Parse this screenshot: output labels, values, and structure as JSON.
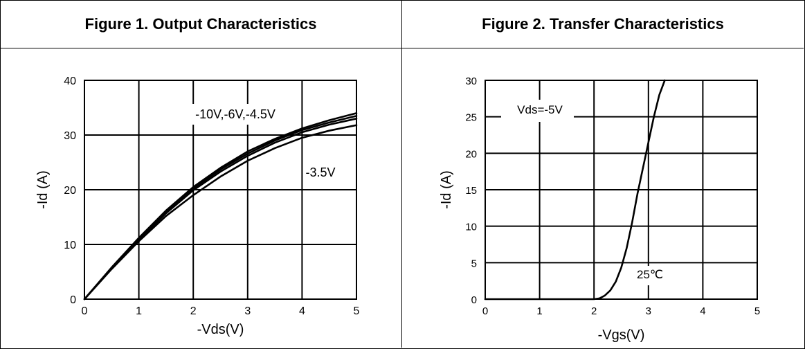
{
  "chart_data": [
    {
      "type": "line",
      "title": "Figure 1. Output Characteristics",
      "xlabel": "-Vds(V)",
      "ylabel": "-Id (A)",
      "xlim": [
        0,
        5
      ],
      "ylim": [
        0,
        40
      ],
      "xticks": [
        "0",
        "1",
        "2",
        "3",
        "4",
        "5"
      ],
      "yticks": [
        "0",
        "10",
        "20",
        "30",
        "40"
      ],
      "grid": true,
      "annotations": [
        "-10V,-6V,-4.5V",
        "-3.5V"
      ],
      "series": [
        {
          "x": [
            0,
            0.5,
            1,
            1.5,
            2,
            2.5,
            3,
            3.5,
            4,
            4.5,
            5
          ],
          "y": [
            0,
            5.8,
            11.2,
            16.2,
            20.5,
            24.0,
            27.0,
            29.3,
            31.2,
            32.7,
            34.0
          ]
        },
        {
          "x": [
            0,
            0.5,
            1,
            1.5,
            2,
            2.5,
            3,
            3.5,
            4,
            4.5,
            5
          ],
          "y": [
            0,
            5.7,
            11.0,
            16.0,
            20.2,
            23.7,
            26.6,
            29.0,
            30.9,
            32.3,
            33.5
          ]
        },
        {
          "x": [
            0,
            0.5,
            1,
            1.5,
            2,
            2.5,
            3,
            3.5,
            4,
            4.5,
            5
          ],
          "y": [
            0,
            5.6,
            10.8,
            15.7,
            19.9,
            23.3,
            26.2,
            28.6,
            30.5,
            31.9,
            33.0
          ]
        },
        {
          "x": [
            0,
            0.5,
            1,
            1.5,
            2,
            2.5,
            3,
            3.5,
            4,
            4.5,
            5
          ],
          "y": [
            0,
            5.5,
            10.6,
            15.2,
            19.0,
            22.4,
            25.3,
            27.6,
            29.5,
            30.8,
            31.8
          ]
        }
      ]
    },
    {
      "type": "line",
      "title": "Figure 2. Transfer Characteristics",
      "xlabel": "-Vgs(V)",
      "ylabel": "-Id (A)",
      "xlim": [
        0,
        5
      ],
      "ylim": [
        0,
        30
      ],
      "xticks": [
        "0",
        "1",
        "2",
        "3",
        "4",
        "5"
      ],
      "yticks": [
        "0",
        "5",
        "10",
        "15",
        "20",
        "25",
        "30"
      ],
      "grid": true,
      "annotations": [
        "Vds=-5V",
        "25℃"
      ],
      "series": [
        {
          "x": [
            0,
            1,
            2.0,
            2.1,
            2.2,
            2.3,
            2.4,
            2.5,
            2.6,
            2.7,
            2.8,
            2.9,
            3.0,
            3.1,
            3.2,
            3.3
          ],
          "y": [
            0,
            0,
            0,
            0.1,
            0.5,
            1.2,
            2.4,
            4.3,
            7.0,
            10.5,
            14.5,
            18.0,
            21.5,
            25.0,
            28.0,
            30.0
          ]
        }
      ]
    }
  ]
}
